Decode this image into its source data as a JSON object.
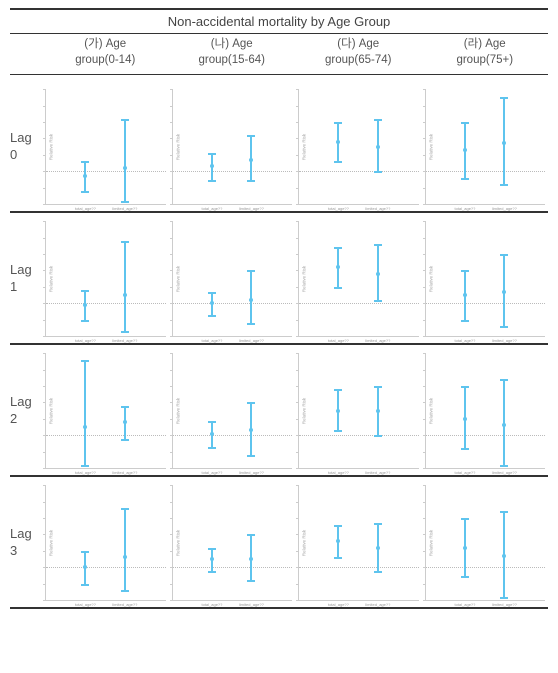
{
  "title": "Non-accidental mortality by Age Group",
  "series_color": "#5ec4ee",
  "grid_color": "#cccccc",
  "ref_color": "#bbbbbb",
  "background_color": "#ffffff",
  "text_color": "#555555",
  "y_axis_label": "Relative Risk",
  "x_categories": [
    "total_age??",
    "limited_age??"
  ],
  "columns": [
    {
      "key": "a",
      "label_line1": "(가) Age",
      "label_line2": "group(0-14)"
    },
    {
      "key": "b",
      "label_line1": "(나) Age",
      "label_line2": "group(15-64)"
    },
    {
      "key": "c",
      "label_line1": "(다) Age",
      "label_line2": "group(65-74)"
    },
    {
      "key": "d",
      "label_line1": "(라) Age",
      "label_line2": "group(75+)"
    }
  ],
  "rows": [
    {
      "key": "lag0",
      "label_line1": "Lag",
      "label_line2": "0"
    },
    {
      "key": "lag1",
      "label_line1": "Lag",
      "label_line2": "1"
    },
    {
      "key": "lag2",
      "label_line1": "Lag",
      "label_line2": "2"
    },
    {
      "key": "lag3",
      "label_line1": "Lag",
      "label_line2": "3"
    }
  ],
  "ylim": [
    0.8,
    1.5
  ],
  "ref_value": 1.0,
  "yticks": [
    0.8,
    0.9,
    1.0,
    1.1,
    1.2,
    1.3,
    1.4,
    1.5
  ],
  "panels": {
    "lag0": {
      "a": {
        "points": [
          {
            "x": 0,
            "mid": 0.97,
            "lo": 0.88,
            "hi": 1.06
          },
          {
            "x": 1,
            "mid": 1.02,
            "lo": 0.82,
            "hi": 1.32
          }
        ]
      },
      "b": {
        "points": [
          {
            "x": 0,
            "mid": 1.03,
            "lo": 0.95,
            "hi": 1.11
          },
          {
            "x": 1,
            "mid": 1.07,
            "lo": 0.95,
            "hi": 1.22
          }
        ]
      },
      "c": {
        "points": [
          {
            "x": 0,
            "mid": 1.18,
            "lo": 1.06,
            "hi": 1.3
          },
          {
            "x": 1,
            "mid": 1.15,
            "lo": 1.0,
            "hi": 1.32
          }
        ]
      },
      "d": {
        "points": [
          {
            "x": 0,
            "mid": 1.13,
            "lo": 0.96,
            "hi": 1.3
          },
          {
            "x": 1,
            "mid": 1.17,
            "lo": 0.92,
            "hi": 1.45
          }
        ]
      }
    },
    "lag1": {
      "a": {
        "points": [
          {
            "x": 0,
            "mid": 0.99,
            "lo": 0.9,
            "hi": 1.08
          },
          {
            "x": 1,
            "mid": 1.05,
            "lo": 0.83,
            "hi": 1.38
          }
        ]
      },
      "b": {
        "points": [
          {
            "x": 0,
            "mid": 1.0,
            "lo": 0.93,
            "hi": 1.07
          },
          {
            "x": 1,
            "mid": 1.02,
            "lo": 0.88,
            "hi": 1.2
          }
        ]
      },
      "c": {
        "points": [
          {
            "x": 0,
            "mid": 1.22,
            "lo": 1.1,
            "hi": 1.34
          },
          {
            "x": 1,
            "mid": 1.18,
            "lo": 1.02,
            "hi": 1.36
          }
        ]
      },
      "d": {
        "points": [
          {
            "x": 0,
            "mid": 1.05,
            "lo": 0.9,
            "hi": 1.2
          },
          {
            "x": 1,
            "mid": 1.07,
            "lo": 0.86,
            "hi": 1.3
          }
        ]
      }
    },
    "lag2": {
      "a": {
        "points": [
          {
            "x": 0,
            "mid": 1.05,
            "lo": 0.82,
            "hi": 1.46
          },
          {
            "x": 1,
            "mid": 1.08,
            "lo": 0.98,
            "hi": 1.18
          }
        ]
      },
      "b": {
        "points": [
          {
            "x": 0,
            "mid": 1.01,
            "lo": 0.93,
            "hi": 1.09
          },
          {
            "x": 1,
            "mid": 1.03,
            "lo": 0.88,
            "hi": 1.2
          }
        ]
      },
      "c": {
        "points": [
          {
            "x": 0,
            "mid": 1.15,
            "lo": 1.03,
            "hi": 1.28
          },
          {
            "x": 1,
            "mid": 1.15,
            "lo": 1.0,
            "hi": 1.3
          }
        ]
      },
      "d": {
        "points": [
          {
            "x": 0,
            "mid": 1.1,
            "lo": 0.92,
            "hi": 1.3
          },
          {
            "x": 1,
            "mid": 1.06,
            "lo": 0.82,
            "hi": 1.34
          }
        ]
      }
    },
    "lag3": {
      "a": {
        "points": [
          {
            "x": 0,
            "mid": 1.0,
            "lo": 0.9,
            "hi": 1.1
          },
          {
            "x": 1,
            "mid": 1.06,
            "lo": 0.86,
            "hi": 1.36
          }
        ]
      },
      "b": {
        "points": [
          {
            "x": 0,
            "mid": 1.05,
            "lo": 0.98,
            "hi": 1.12
          },
          {
            "x": 1,
            "mid": 1.05,
            "lo": 0.92,
            "hi": 1.2
          }
        ]
      },
      "c": {
        "points": [
          {
            "x": 0,
            "mid": 1.16,
            "lo": 1.06,
            "hi": 1.26
          },
          {
            "x": 1,
            "mid": 1.12,
            "lo": 0.98,
            "hi": 1.27
          }
        ]
      },
      "d": {
        "points": [
          {
            "x": 0,
            "mid": 1.12,
            "lo": 0.95,
            "hi": 1.3
          },
          {
            "x": 1,
            "mid": 1.07,
            "lo": 0.82,
            "hi": 1.34
          }
        ]
      }
    }
  }
}
